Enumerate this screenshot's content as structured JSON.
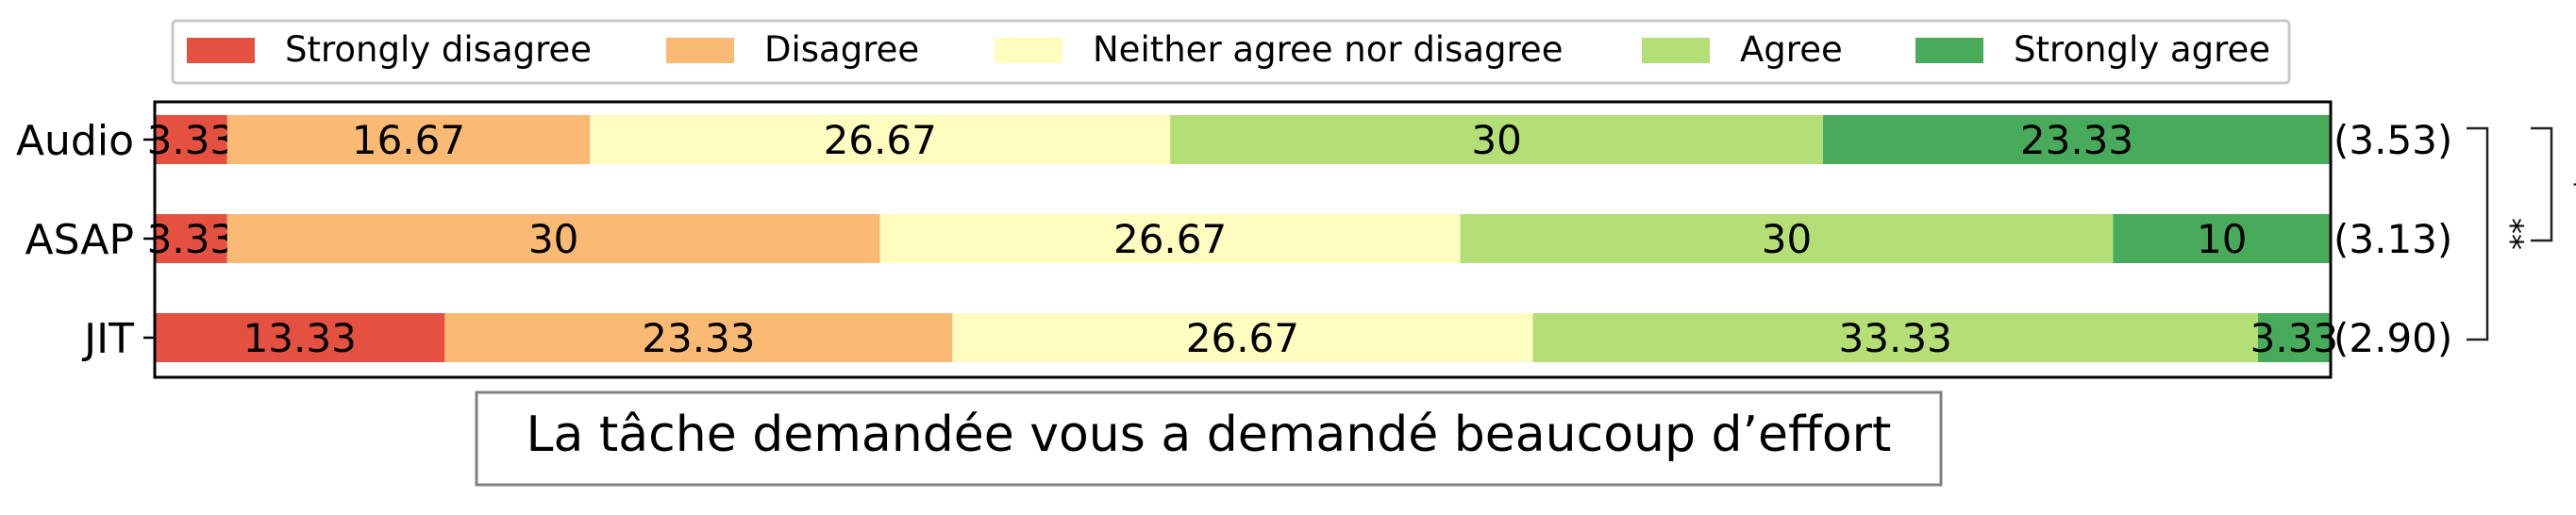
{
  "chart_data": {
    "type": "bar",
    "orientation": "horizontal",
    "stacked": true,
    "title": "La tâche demandée vous a demandé beaucoup d’effort",
    "categories": [
      "Audio",
      "ASAP",
      "JIT"
    ],
    "xlim": [
      0,
      100
    ],
    "grid": false,
    "legend_position": "top",
    "series": [
      {
        "name": "Strongly disagree",
        "color": "#e45140",
        "values": [
          3.33,
          3.33,
          13.33
        ],
        "labels": [
          "3.33",
          "3.33",
          "13.33"
        ]
      },
      {
        "name": "Disagree",
        "color": "#fbba73",
        "values": [
          16.67,
          30,
          23.33
        ],
        "labels": [
          "16.67",
          "30",
          "23.33"
        ]
      },
      {
        "name": "Neither agree nor disagree",
        "color": "#fefcbf",
        "values": [
          26.67,
          26.67,
          26.67
        ],
        "labels": [
          "26.67",
          "26.67",
          "26.67"
        ]
      },
      {
        "name": "Agree",
        "color": "#b4df76",
        "values": [
          30,
          30,
          33.33
        ],
        "labels": [
          "30",
          "30",
          "33.33"
        ]
      },
      {
        "name": "Strongly agree",
        "color": "#48ab5c",
        "values": [
          23.33,
          10,
          3.33
        ],
        "labels": [
          "23.33",
          "10",
          "3.33"
        ]
      }
    ],
    "means": [
      "(3.53)",
      "(3.13)",
      "(2.90)"
    ],
    "significance": [
      {
        "from": "Audio",
        "to": "ASAP",
        "label": "*"
      },
      {
        "from": "Audio",
        "to": "JIT",
        "label": "**"
      }
    ]
  }
}
